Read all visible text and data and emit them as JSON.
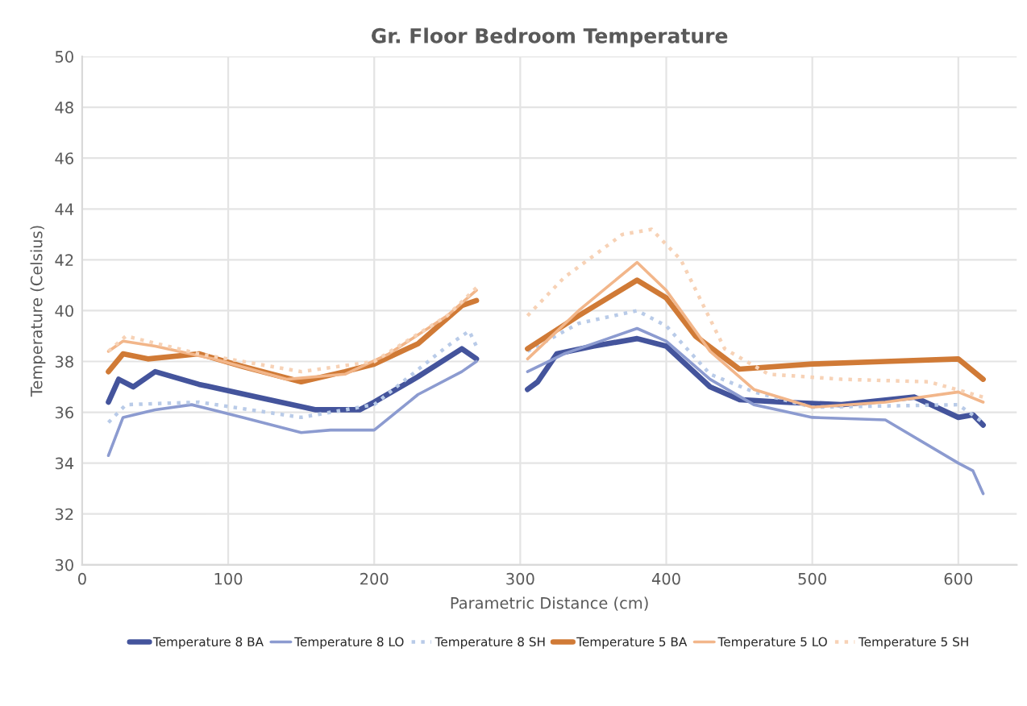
{
  "chart_data": {
    "type": "line",
    "title": "Gr. Floor Bedroom Temperature",
    "xlabel": "Parametric Distance (cm)",
    "ylabel": "Temperature (Celsius)",
    "xlim": [
      0,
      640
    ],
    "xticks": [
      0,
      100,
      200,
      300,
      400,
      500,
      600
    ],
    "ylim": [
      30,
      50
    ],
    "yticks": [
      30,
      32,
      34,
      36,
      38,
      40,
      42,
      44,
      46,
      48,
      50
    ],
    "grid": true,
    "legend": "bottom",
    "marker": "none",
    "series": [
      {
        "name": "Temperature 8 BA",
        "color": "#44549c",
        "line_style": "solid",
        "x": [
          18,
          25,
          35,
          50,
          80,
          120,
          160,
          190,
          200,
          230,
          260,
          270,
          285,
          305,
          312,
          325,
          350,
          380,
          400,
          430,
          450,
          480,
          520,
          570,
          600,
          610,
          617
        ],
        "values": [
          36.4,
          37.3,
          37.0,
          37.6,
          37.1,
          36.6,
          36.1,
          36.1,
          36.4,
          37.4,
          38.5,
          38.1,
          null,
          36.9,
          37.2,
          38.3,
          38.6,
          38.9,
          38.6,
          37.0,
          36.5,
          36.4,
          36.3,
          36.6,
          35.8,
          35.9,
          35.5
        ]
      },
      {
        "name": "Temperature 8 LO",
        "color": "#8c9bd0",
        "line_style": "solid",
        "x": [
          18,
          28,
          50,
          75,
          110,
          150,
          170,
          200,
          230,
          260,
          270,
          285,
          305,
          330,
          360,
          380,
          400,
          430,
          460,
          500,
          550,
          600,
          610,
          617
        ],
        "values": [
          34.3,
          35.8,
          36.1,
          36.3,
          35.8,
          35.2,
          35.3,
          35.3,
          36.7,
          37.6,
          38.0,
          null,
          37.6,
          38.3,
          38.9,
          39.3,
          38.8,
          37.3,
          36.3,
          35.8,
          35.7,
          34.0,
          33.7,
          32.8
        ]
      },
      {
        "name": "Temperature 8 SH",
        "color": "#b9cbe8",
        "line_style": "dotted",
        "x": [
          18,
          30,
          80,
          150,
          200,
          250,
          265,
          270,
          285,
          305,
          340,
          380,
          400,
          430,
          460,
          500,
          600,
          617
        ],
        "values": [
          35.6,
          36.3,
          36.4,
          35.8,
          36.3,
          38.6,
          39.2,
          38.6,
          null,
          38.4,
          39.5,
          40.0,
          39.4,
          37.5,
          36.8,
          36.2,
          36.3,
          35.6
        ]
      },
      {
        "name": "Temperature 5 BA",
        "color": "#d07a36",
        "line_style": "solid",
        "x": [
          18,
          28,
          45,
          80,
          110,
          150,
          180,
          200,
          230,
          260,
          270,
          285,
          305,
          340,
          380,
          400,
          420,
          450,
          500,
          550,
          600,
          617
        ],
        "values": [
          37.6,
          38.3,
          38.1,
          38.3,
          37.8,
          37.2,
          37.6,
          37.9,
          38.7,
          40.2,
          40.4,
          null,
          38.5,
          39.8,
          41.2,
          40.5,
          39.0,
          37.7,
          37.9,
          38.0,
          38.1,
          37.3
        ]
      },
      {
        "name": "Temperature 5 LO",
        "color": "#f2b68a",
        "line_style": "solid",
        "x": [
          18,
          28,
          50,
          90,
          140,
          180,
          210,
          250,
          270,
          285,
          305,
          340,
          380,
          400,
          430,
          460,
          500,
          550,
          600,
          617
        ],
        "values": [
          38.4,
          38.8,
          38.6,
          38.1,
          37.3,
          37.5,
          38.3,
          39.8,
          40.8,
          null,
          38.1,
          40.0,
          41.9,
          40.8,
          38.4,
          36.9,
          36.2,
          36.4,
          36.8,
          36.4
        ]
      },
      {
        "name": "Temperature 5 SH",
        "color": "#f7d2b6",
        "line_style": "dotted",
        "x": [
          18,
          30,
          80,
          150,
          200,
          250,
          270,
          285,
          305,
          330,
          370,
          390,
          410,
          440,
          470,
          520,
          580,
          617
        ],
        "values": [
          38.4,
          39.0,
          38.3,
          37.6,
          38.0,
          39.8,
          40.9,
          null,
          39.8,
          41.3,
          43.0,
          43.2,
          42.0,
          38.5,
          37.5,
          37.3,
          37.2,
          36.6
        ]
      }
    ]
  }
}
